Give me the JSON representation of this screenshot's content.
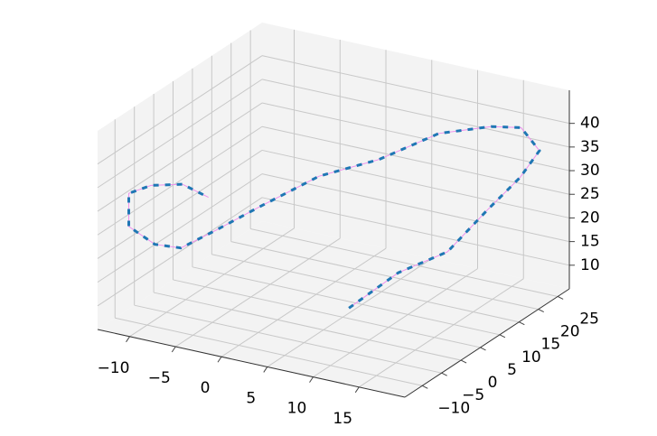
{
  "chart_data": {
    "type": "line3d",
    "x": [
      12,
      14,
      16,
      17,
      18,
      18,
      16,
      14,
      10,
      6,
      2,
      -2,
      -5,
      -8,
      -10,
      -12,
      -12,
      -10,
      -7,
      -5
    ],
    "y": [
      -10,
      -2,
      6,
      14,
      20,
      25,
      25,
      22,
      18,
      12,
      6,
      0,
      -4,
      -6,
      -8,
      -10,
      -10,
      -9,
      -8,
      -6
    ],
    "z": [
      18,
      22,
      23,
      28,
      32,
      35,
      39,
      40,
      39,
      35,
      33,
      28,
      24,
      20,
      21,
      25,
      32,
      34,
      35,
      32
    ],
    "line_color": "#ee90ee",
    "arrow_color": "#1f77b4",
    "xlim": [
      -13.5,
      20
    ],
    "ylim": [
      -14.5,
      28
    ],
    "zlim": [
      5,
      47
    ],
    "xticks": [
      {
        "value": -10,
        "label": "−10"
      },
      {
        "value": -5,
        "label": "−5"
      },
      0,
      5,
      10,
      15
    ],
    "yticks": [
      {
        "value": -10,
        "label": "−10"
      },
      {
        "value": -5,
        "label": "−5"
      },
      0,
      5,
      10,
      15,
      20,
      25
    ],
    "zticks": [
      10,
      15,
      20,
      25,
      30,
      35,
      40
    ],
    "grid": true
  }
}
